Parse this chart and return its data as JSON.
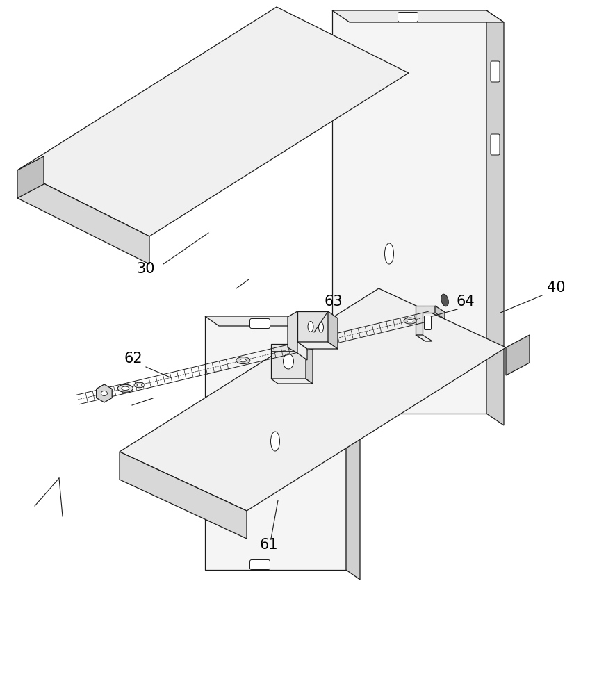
{
  "bg_color": "#ffffff",
  "lc": "#1a1a1a",
  "fill_top": "#f0f0f0",
  "fill_front": "#d8d8d8",
  "fill_side": "#c0c0c0",
  "fill_panel": "#f5f5f5",
  "fill_panel_side": "#d0d0d0",
  "fill_bracket": "#e2e2e2",
  "label_30": "30",
  "label_40": "40",
  "label_61": "61",
  "label_62": "62",
  "label_63": "63",
  "label_64": "64",
  "figwidth": 8.49,
  "figheight": 10.0,
  "dpi": 100
}
